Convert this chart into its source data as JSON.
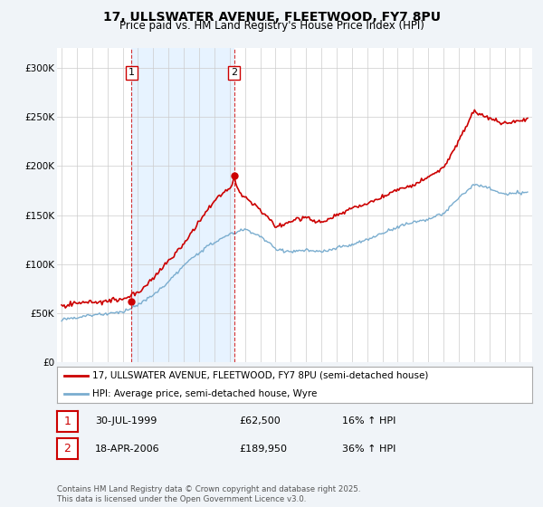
{
  "title": "17, ULLSWATER AVENUE, FLEETWOOD, FY7 8PU",
  "subtitle": "Price paid vs. HM Land Registry's House Price Index (HPI)",
  "property_label": "17, ULLSWATER AVENUE, FLEETWOOD, FY7 8PU (semi-detached house)",
  "hpi_label": "HPI: Average price, semi-detached house, Wyre",
  "property_color": "#cc0000",
  "hpi_color": "#7aadcf",
  "shade_color": "#ddeeff",
  "background_color": "#f0f4f8",
  "plot_bg_color": "#ffffff",
  "ylim": [
    0,
    320000
  ],
  "yticks": [
    0,
    50000,
    100000,
    150000,
    200000,
    250000,
    300000
  ],
  "ytick_labels": [
    "£0",
    "£50K",
    "£100K",
    "£150K",
    "£200K",
    "£250K",
    "£300K"
  ],
  "sale1_date_num": 1999.58,
  "sale1_price": 62500,
  "sale1_display": "30-JUL-1999",
  "sale1_price_display": "£62,500",
  "sale1_hpi_pct": "16% ↑ HPI",
  "sale2_date_num": 2006.29,
  "sale2_price": 189950,
  "sale2_display": "18-APR-2006",
  "sale2_price_display": "£189,950",
  "sale2_hpi_pct": "36% ↑ HPI",
  "footnote": "Contains HM Land Registry data © Crown copyright and database right 2025.\nThis data is licensed under the Open Government Licence v3.0.",
  "xmin": 1994.7,
  "xmax": 2025.8
}
